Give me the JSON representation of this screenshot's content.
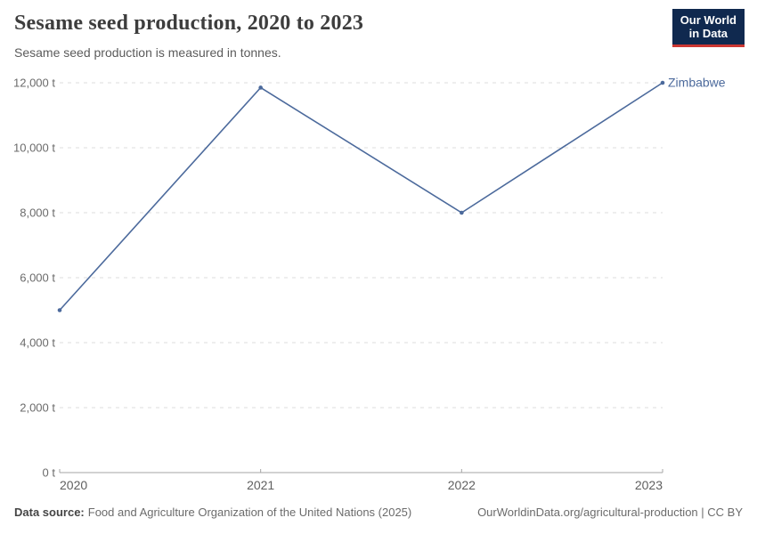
{
  "header": {
    "title": "Sesame seed production, 2020 to 2023",
    "subtitle": "Sesame seed production is measured in tonnes."
  },
  "logo": {
    "line1": "Our World",
    "line2": "in Data",
    "bg_color": "#10294f",
    "accent_color": "#cc3732"
  },
  "chart_data": {
    "type": "line",
    "title": "Sesame seed production, 2020 to 2023",
    "unit": "t",
    "x": [
      2020,
      2021,
      2022,
      2023
    ],
    "series": [
      {
        "name": "Zimbabwe",
        "color": "#4c6a9c",
        "values": [
          5000,
          11850,
          8000,
          12000
        ]
      }
    ],
    "ylim": [
      0,
      12000
    ],
    "ytick_step": 2000,
    "grid": "horizontal-dashed",
    "gridline_color": "#dcdcdc",
    "axis_color": "#a5a5a5",
    "tick_label_color": "#5f5f5f",
    "legend_position": "line-end-label"
  },
  "footer": {
    "source_label": "Data source:",
    "source_text": "Food and Agriculture Organization of the United Nations (2025)",
    "credit": "OurWorldinData.org/agricultural-production | CC BY"
  }
}
